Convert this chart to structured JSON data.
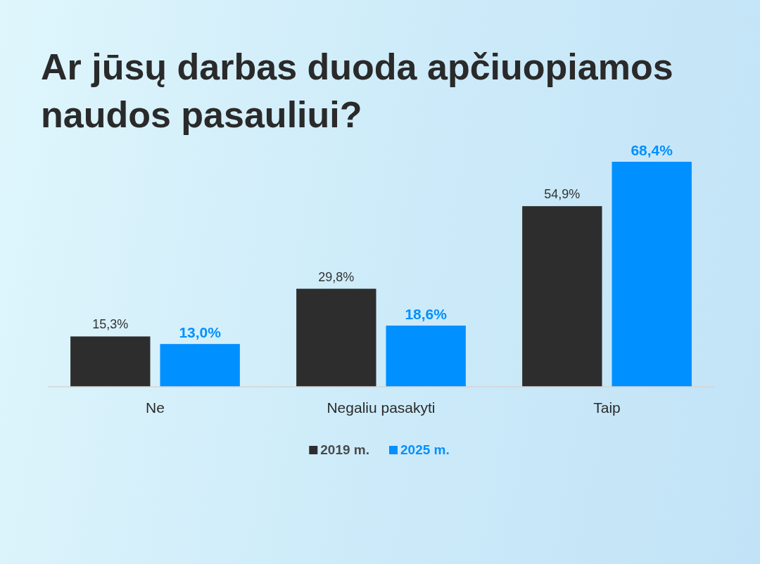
{
  "chart_data": {
    "type": "bar",
    "title": "Ar jūsų darbas duoda apčiuopiamos naudos pasauliui?",
    "categories": [
      "Ne",
      "Negaliu pasakyti",
      "Taip"
    ],
    "series": [
      {
        "name": "2019 m.",
        "color": "#2d2d2d",
        "values": [
          15.3,
          29.8,
          54.9
        ],
        "value_labels": [
          "15,3%",
          "29,8%",
          "54,9%"
        ]
      },
      {
        "name": "2025 m.",
        "color": "#0090ff",
        "values": [
          13.0,
          18.6,
          68.4
        ],
        "value_labels": [
          "13,0%",
          "18,6%",
          "68,4%"
        ]
      }
    ],
    "legend": "bottom",
    "tick_labels": "x"
  }
}
